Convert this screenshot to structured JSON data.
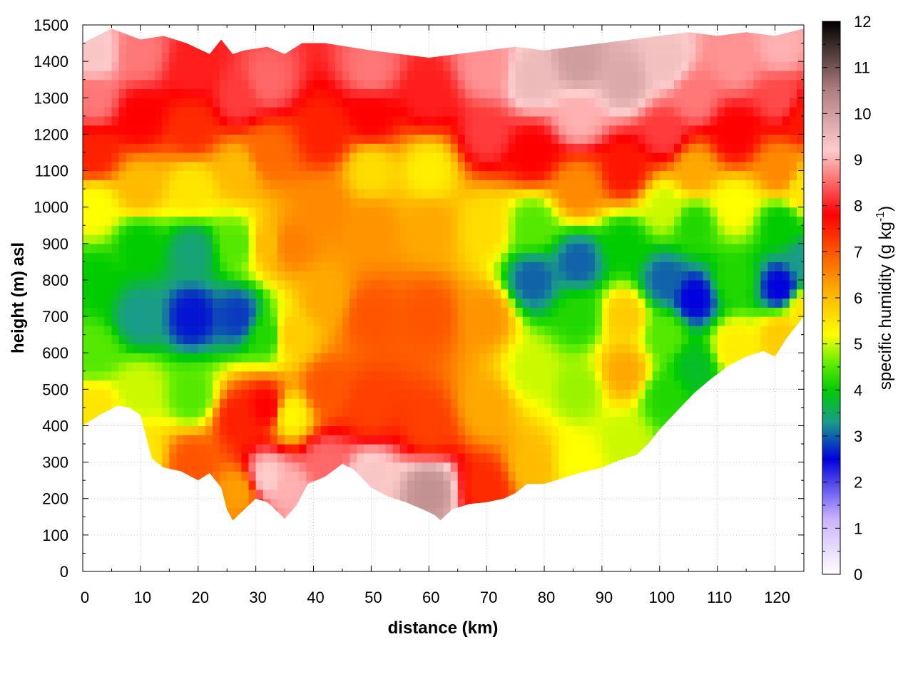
{
  "chart_data": {
    "type": "heatmap",
    "title": "",
    "xlabel": "distance (km)",
    "ylabel": "height (m) asl",
    "xlim": [
      0,
      125
    ],
    "ylim": [
      0,
      1500
    ],
    "x_ticks": [
      "0",
      "10",
      "20",
      "30",
      "40",
      "50",
      "60",
      "70",
      "80",
      "90",
      "100",
      "110",
      "120"
    ],
    "y_ticks": [
      "0",
      "100",
      "200",
      "300",
      "400",
      "500",
      "600",
      "700",
      "800",
      "900",
      "1000",
      "1100",
      "1200",
      "1300",
      "1400",
      "1500"
    ],
    "grid": true,
    "colorbar": {
      "label_main": "specific humidity (g kg",
      "label_sup": "-1",
      "label_end": ")",
      "range": [
        0,
        12
      ],
      "ticks": [
        "0",
        "1",
        "2",
        "3",
        "4",
        "5",
        "6",
        "7",
        "8",
        "9",
        "10",
        "11",
        "12"
      ],
      "stops": [
        {
          "v": 0,
          "color": "#ffffff"
        },
        {
          "v": 1.2,
          "color": "#ccb3ff"
        },
        {
          "v": 2.5,
          "color": "#0000dd"
        },
        {
          "v": 3.3,
          "color": "#1a9c8a"
        },
        {
          "v": 4.0,
          "color": "#00cc00"
        },
        {
          "v": 4.6,
          "color": "#66ee00"
        },
        {
          "v": 5.2,
          "color": "#ffff00"
        },
        {
          "v": 6.1,
          "color": "#ffb300"
        },
        {
          "v": 7.0,
          "color": "#ff5500"
        },
        {
          "v": 7.8,
          "color": "#ff0000"
        },
        {
          "v": 8.6,
          "color": "#ff7777"
        },
        {
          "v": 9.2,
          "color": "#ffcccc"
        },
        {
          "v": 10.5,
          "color": "#b08080"
        },
        {
          "v": 12,
          "color": "#000000"
        }
      ]
    },
    "terrain_m": [
      [
        0,
        400
      ],
      [
        3,
        430
      ],
      [
        6,
        455
      ],
      [
        8,
        450
      ],
      [
        10,
        430
      ],
      [
        11,
        370
      ],
      [
        12,
        310
      ],
      [
        14,
        285
      ],
      [
        17,
        275
      ],
      [
        20,
        250
      ],
      [
        22,
        270
      ],
      [
        24,
        230
      ],
      [
        25,
        170
      ],
      [
        26,
        140
      ],
      [
        28,
        170
      ],
      [
        30,
        200
      ],
      [
        32,
        190
      ],
      [
        34,
        160
      ],
      [
        35,
        145
      ],
      [
        37,
        180
      ],
      [
        39,
        240
      ],
      [
        42,
        260
      ],
      [
        45,
        295
      ],
      [
        47,
        280
      ],
      [
        50,
        230
      ],
      [
        53,
        205
      ],
      [
        56,
        190
      ],
      [
        59,
        170
      ],
      [
        61,
        155
      ],
      [
        62,
        140
      ],
      [
        64,
        170
      ],
      [
        67,
        185
      ],
      [
        70,
        190
      ],
      [
        73,
        200
      ],
      [
        75,
        215
      ],
      [
        77,
        240
      ],
      [
        80,
        240
      ],
      [
        83,
        255
      ],
      [
        86,
        270
      ],
      [
        90,
        285
      ],
      [
        93,
        305
      ],
      [
        96,
        320
      ],
      [
        98,
        350
      ],
      [
        100,
        390
      ],
      [
        103,
        440
      ],
      [
        106,
        490
      ],
      [
        109,
        530
      ],
      [
        112,
        565
      ],
      [
        115,
        590
      ],
      [
        118,
        605
      ],
      [
        120,
        590
      ],
      [
        122,
        640
      ],
      [
        125,
        700
      ]
    ],
    "cloud_top_m": [
      [
        0,
        1450
      ],
      [
        5,
        1490
      ],
      [
        10,
        1460
      ],
      [
        14,
        1470
      ],
      [
        18,
        1450
      ],
      [
        22,
        1420
      ],
      [
        24,
        1460
      ],
      [
        26,
        1420
      ],
      [
        28,
        1430
      ],
      [
        32,
        1440
      ],
      [
        35,
        1420
      ],
      [
        38,
        1450
      ],
      [
        42,
        1450
      ],
      [
        46,
        1440
      ],
      [
        50,
        1430
      ],
      [
        55,
        1420
      ],
      [
        60,
        1410
      ],
      [
        65,
        1420
      ],
      [
        70,
        1430
      ],
      [
        75,
        1440
      ],
      [
        80,
        1430
      ],
      [
        85,
        1440
      ],
      [
        90,
        1450
      ],
      [
        95,
        1460
      ],
      [
        100,
        1470
      ],
      [
        105,
        1480
      ],
      [
        110,
        1470
      ],
      [
        115,
        1480
      ],
      [
        120,
        1470
      ],
      [
        125,
        1490
      ]
    ],
    "humidity_points_gkg": [
      {
        "x": 2,
        "y": 450,
        "v": 5.5
      },
      {
        "x": 2,
        "y": 600,
        "v": 4.5
      },
      {
        "x": 2,
        "y": 800,
        "v": 4.0
      },
      {
        "x": 2,
        "y": 1000,
        "v": 5.2
      },
      {
        "x": 2,
        "y": 1150,
        "v": 7.5
      },
      {
        "x": 2,
        "y": 1300,
        "v": 8.6
      },
      {
        "x": 2,
        "y": 1420,
        "v": 9.3
      },
      {
        "x": 10,
        "y": 320,
        "v": 5.5
      },
      {
        "x": 10,
        "y": 500,
        "v": 5.0
      },
      {
        "x": 10,
        "y": 700,
        "v": 3.3
      },
      {
        "x": 10,
        "y": 900,
        "v": 4.0
      },
      {
        "x": 10,
        "y": 1050,
        "v": 6.0
      },
      {
        "x": 10,
        "y": 1250,
        "v": 7.8
      },
      {
        "x": 10,
        "y": 1420,
        "v": 8.6
      },
      {
        "x": 19,
        "y": 300,
        "v": 7.0
      },
      {
        "x": 19,
        "y": 480,
        "v": 4.5
      },
      {
        "x": 19,
        "y": 700,
        "v": 2.6
      },
      {
        "x": 19,
        "y": 880,
        "v": 3.4
      },
      {
        "x": 19,
        "y": 1050,
        "v": 5.5
      },
      {
        "x": 19,
        "y": 1220,
        "v": 7.4
      },
      {
        "x": 19,
        "y": 1380,
        "v": 8.0
      },
      {
        "x": 27,
        "y": 220,
        "v": 6.3
      },
      {
        "x": 27,
        "y": 420,
        "v": 7.5
      },
      {
        "x": 27,
        "y": 700,
        "v": 2.8
      },
      {
        "x": 27,
        "y": 900,
        "v": 4.5
      },
      {
        "x": 27,
        "y": 1100,
        "v": 6.0
      },
      {
        "x": 27,
        "y": 1300,
        "v": 8.2
      },
      {
        "x": 32,
        "y": 260,
        "v": 9.2
      },
      {
        "x": 32,
        "y": 450,
        "v": 7.8
      },
      {
        "x": 32,
        "y": 650,
        "v": 4.2
      },
      {
        "x": 32,
        "y": 900,
        "v": 6.0
      },
      {
        "x": 32,
        "y": 1150,
        "v": 6.8
      },
      {
        "x": 32,
        "y": 1350,
        "v": 8.5
      },
      {
        "x": 36,
        "y": 230,
        "v": 9.0
      },
      {
        "x": 36,
        "y": 430,
        "v": 5.3
      },
      {
        "x": 36,
        "y": 650,
        "v": 5.8
      },
      {
        "x": 36,
        "y": 900,
        "v": 6.6
      },
      {
        "x": 42,
        "y": 300,
        "v": 8.5
      },
      {
        "x": 42,
        "y": 500,
        "v": 7.0
      },
      {
        "x": 42,
        "y": 750,
        "v": 6.2
      },
      {
        "x": 42,
        "y": 1000,
        "v": 6.5
      },
      {
        "x": 42,
        "y": 1200,
        "v": 7.5
      },
      {
        "x": 50,
        "y": 260,
        "v": 9.3
      },
      {
        "x": 50,
        "y": 450,
        "v": 7.2
      },
      {
        "x": 50,
        "y": 700,
        "v": 7.0
      },
      {
        "x": 50,
        "y": 950,
        "v": 6.4
      },
      {
        "x": 50,
        "y": 1100,
        "v": 5.6
      },
      {
        "x": 50,
        "y": 1250,
        "v": 7.8
      },
      {
        "x": 50,
        "y": 1380,
        "v": 8.6
      },
      {
        "x": 60,
        "y": 220,
        "v": 10.2
      },
      {
        "x": 60,
        "y": 400,
        "v": 7.2
      },
      {
        "x": 60,
        "y": 700,
        "v": 7.0
      },
      {
        "x": 60,
        "y": 950,
        "v": 6.2
      },
      {
        "x": 60,
        "y": 1100,
        "v": 5.4
      },
      {
        "x": 60,
        "y": 1300,
        "v": 8.0
      },
      {
        "x": 70,
        "y": 230,
        "v": 7.4
      },
      {
        "x": 70,
        "y": 450,
        "v": 6.2
      },
      {
        "x": 70,
        "y": 700,
        "v": 6.4
      },
      {
        "x": 70,
        "y": 950,
        "v": 5.6
      },
      {
        "x": 70,
        "y": 1200,
        "v": 8.2
      },
      {
        "x": 70,
        "y": 1380,
        "v": 8.8
      },
      {
        "x": 78,
        "y": 290,
        "v": 6.0
      },
      {
        "x": 78,
        "y": 550,
        "v": 5.0
      },
      {
        "x": 78,
        "y": 800,
        "v": 3.0
      },
      {
        "x": 78,
        "y": 950,
        "v": 4.5
      },
      {
        "x": 78,
        "y": 1150,
        "v": 7.8
      },
      {
        "x": 78,
        "y": 1350,
        "v": 9.5
      },
      {
        "x": 86,
        "y": 300,
        "v": 5.2
      },
      {
        "x": 86,
        "y": 500,
        "v": 4.8
      },
      {
        "x": 86,
        "y": 700,
        "v": 4.2
      },
      {
        "x": 86,
        "y": 850,
        "v": 3.0
      },
      {
        "x": 86,
        "y": 1050,
        "v": 6.5
      },
      {
        "x": 86,
        "y": 1250,
        "v": 9.0
      },
      {
        "x": 86,
        "y": 1400,
        "v": 10.0
      },
      {
        "x": 94,
        "y": 360,
        "v": 5.0
      },
      {
        "x": 94,
        "y": 550,
        "v": 6.2
      },
      {
        "x": 94,
        "y": 700,
        "v": 5.8
      },
      {
        "x": 94,
        "y": 900,
        "v": 4.0
      },
      {
        "x": 94,
        "y": 1100,
        "v": 7.6
      },
      {
        "x": 94,
        "y": 1350,
        "v": 9.8
      },
      {
        "x": 101,
        "y": 480,
        "v": 4.2
      },
      {
        "x": 101,
        "y": 650,
        "v": 4.5
      },
      {
        "x": 101,
        "y": 800,
        "v": 3.0
      },
      {
        "x": 101,
        "y": 1000,
        "v": 5.0
      },
      {
        "x": 101,
        "y": 1200,
        "v": 8.2
      },
      {
        "x": 101,
        "y": 1400,
        "v": 9.4
      },
      {
        "x": 106,
        "y": 560,
        "v": 3.8
      },
      {
        "x": 106,
        "y": 750,
        "v": 2.5
      },
      {
        "x": 106,
        "y": 950,
        "v": 4.2
      },
      {
        "x": 106,
        "y": 1100,
        "v": 6.2
      },
      {
        "x": 106,
        "y": 1300,
        "v": 8.6
      },
      {
        "x": 113,
        "y": 620,
        "v": 5.4
      },
      {
        "x": 113,
        "y": 800,
        "v": 4.2
      },
      {
        "x": 113,
        "y": 1000,
        "v": 5.2
      },
      {
        "x": 113,
        "y": 1200,
        "v": 7.8
      },
      {
        "x": 113,
        "y": 1400,
        "v": 8.8
      },
      {
        "x": 121,
        "y": 650,
        "v": 5.8
      },
      {
        "x": 121,
        "y": 780,
        "v": 2.5
      },
      {
        "x": 121,
        "y": 950,
        "v": 4.0
      },
      {
        "x": 121,
        "y": 1100,
        "v": 6.5
      },
      {
        "x": 121,
        "y": 1300,
        "v": 8.3
      },
      {
        "x": 121,
        "y": 1440,
        "v": 9.0
      },
      {
        "x": 125,
        "y": 720,
        "v": 5.5
      },
      {
        "x": 125,
        "y": 850,
        "v": 3.3
      },
      {
        "x": 125,
        "y": 1050,
        "v": 5.5
      },
      {
        "x": 125,
        "y": 1250,
        "v": 7.6
      }
    ]
  }
}
